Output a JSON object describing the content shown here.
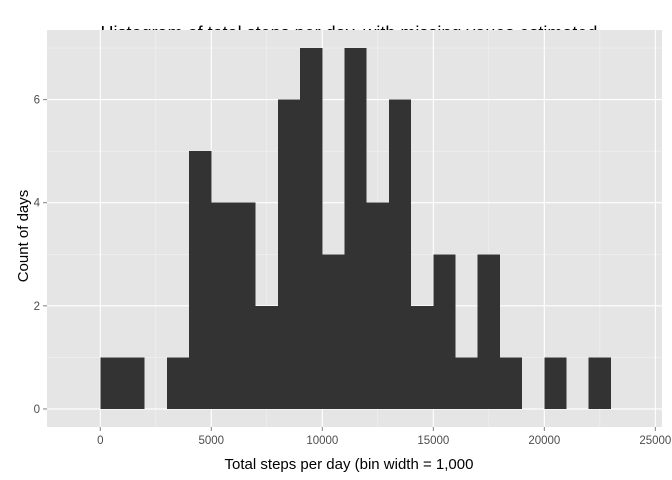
{
  "chart_data": {
    "type": "bar",
    "title": "Histogram of total steps per day, with missing vaues estimated",
    "xlabel": "Total steps per day (bin width = 1,000",
    "ylabel": "Count of days",
    "bin_width": 1000,
    "bins": [
      {
        "start": 0,
        "count": 1
      },
      {
        "start": 1000,
        "count": 1
      },
      {
        "start": 2000,
        "count": 0
      },
      {
        "start": 3000,
        "count": 1
      },
      {
        "start": 4000,
        "count": 5
      },
      {
        "start": 5000,
        "count": 4
      },
      {
        "start": 6000,
        "count": 4
      },
      {
        "start": 7000,
        "count": 2
      },
      {
        "start": 8000,
        "count": 6
      },
      {
        "start": 9000,
        "count": 7
      },
      {
        "start": 10000,
        "count": 3
      },
      {
        "start": 11000,
        "count": 7
      },
      {
        "start": 12000,
        "count": 4
      },
      {
        "start": 13000,
        "count": 6
      },
      {
        "start": 14000,
        "count": 2
      },
      {
        "start": 15000,
        "count": 3
      },
      {
        "start": 16000,
        "count": 1
      },
      {
        "start": 17000,
        "count": 3
      },
      {
        "start": 18000,
        "count": 1
      },
      {
        "start": 19000,
        "count": 0
      },
      {
        "start": 20000,
        "count": 1
      },
      {
        "start": 21000,
        "count": 0
      },
      {
        "start": 22000,
        "count": 1
      }
    ],
    "xlim": [
      -2400,
      25300
    ],
    "ylim": [
      -0.35,
      7.35
    ],
    "x_ticks": [
      0,
      5000,
      10000,
      15000,
      20000,
      25000
    ],
    "x_tick_labels": [
      "0",
      "5000",
      "10000",
      "15000",
      "20000",
      "25000"
    ],
    "y_ticks": [
      0,
      2,
      4,
      6
    ],
    "y_tick_labels": [
      "0",
      "2",
      "4",
      "6"
    ],
    "grid": true,
    "colors": {
      "panel_background": "#e5e5e5",
      "grid_major": "#ffffff",
      "grid_minor": "#f2f2f2",
      "bar_fill": "#333333",
      "tick_text": "#4d4d4d"
    }
  }
}
